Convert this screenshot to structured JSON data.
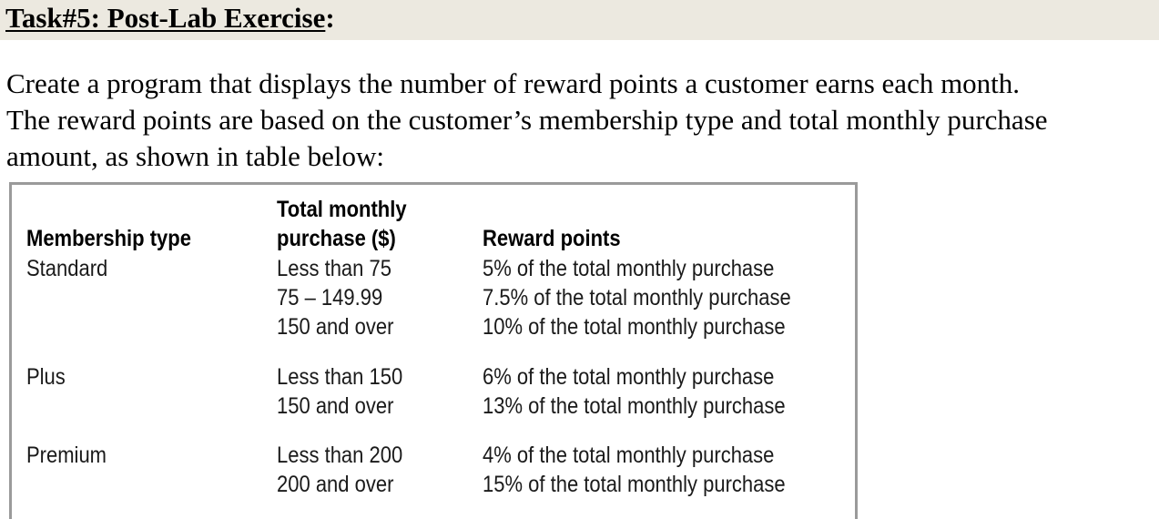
{
  "heading": {
    "title": "Task#5: Post-Lab Exercise",
    "colon": ":"
  },
  "intro": {
    "line1": "Create a program that displays the number of reward points a customer earns each month.",
    "line2": "The reward points are based on the customer’s membership type and total monthly purchase",
    "line3": "amount, as shown in table below:"
  },
  "table": {
    "headers": {
      "membership": "Membership type",
      "purchase_line1": "Total monthly",
      "purchase_line2": "purchase ($)",
      "reward": "Reward points"
    },
    "rows": [
      {
        "membership": "Standard",
        "purchase": "Less than 75",
        "reward": "5% of the total monthly purchase"
      },
      {
        "membership": "",
        "purchase": "75 – 149.99",
        "reward": "7.5% of the total monthly purchase"
      },
      {
        "membership": "",
        "purchase": "150 and over",
        "reward": "10% of the total monthly purchase"
      },
      {
        "membership": "Plus",
        "purchase": "Less than 150",
        "reward": "6% of the total monthly purchase"
      },
      {
        "membership": "",
        "purchase": "150 and over",
        "reward": "13% of the total monthly purchase"
      },
      {
        "membership": "Premium",
        "purchase": "Less than 200",
        "reward": "4% of the total monthly purchase"
      },
      {
        "membership": "",
        "purchase": "200 and over",
        "reward": "15% of the total monthly purchase"
      }
    ]
  }
}
